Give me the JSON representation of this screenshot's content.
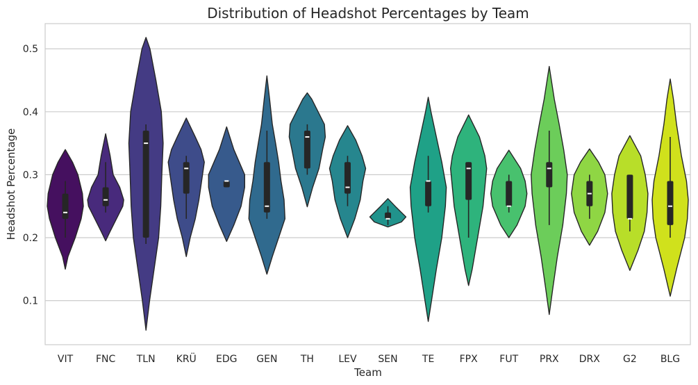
{
  "chart_data": {
    "type": "violin",
    "title": "Distribution of Headshot Percentages by Team",
    "xlabel": "Team",
    "ylabel": "Headshot Percentage",
    "ylim": [
      0.03,
      0.54
    ],
    "yticks": [
      0.1,
      0.2,
      0.3,
      0.4,
      0.5
    ],
    "grid": "horizontal",
    "legend": "none",
    "colormap": "viridis",
    "categories": [
      "VIT",
      "FNC",
      "TLN",
      "KRÜ",
      "EDG",
      "GEN",
      "TH",
      "LEV",
      "SEN",
      "TE",
      "FPX",
      "FUT",
      "PRX",
      "DRX",
      "G2",
      "BLG"
    ],
    "colors": [
      "#45105f",
      "#482a7c",
      "#443b84",
      "#3e4c8a",
      "#375a8c",
      "#306a8e",
      "#2b788e",
      "#26868e",
      "#21938c",
      "#1fa187",
      "#2eb37c",
      "#48c16e",
      "#6ccd5a",
      "#8fd644",
      "#b8de29",
      "#d0e11c"
    ],
    "series": [
      {
        "min": 0.2,
        "q1": 0.23,
        "median": 0.24,
        "q3": 0.27,
        "max": 0.29,
        "profile": [
          [
            0.15,
            0.0
          ],
          [
            0.17,
            0.15
          ],
          [
            0.2,
            0.55
          ],
          [
            0.23,
            0.88
          ],
          [
            0.25,
            1.0
          ],
          [
            0.27,
            0.95
          ],
          [
            0.3,
            0.7
          ],
          [
            0.32,
            0.4
          ],
          [
            0.34,
            0.0
          ]
        ]
      },
      {
        "min": 0.24,
        "q1": 0.25,
        "median": 0.26,
        "q3": 0.28,
        "max": 0.32,
        "profile": [
          [
            0.195,
            0.0
          ],
          [
            0.21,
            0.25
          ],
          [
            0.23,
            0.6
          ],
          [
            0.25,
            0.95
          ],
          [
            0.26,
            1.0
          ],
          [
            0.28,
            0.78
          ],
          [
            0.3,
            0.42
          ],
          [
            0.33,
            0.25
          ],
          [
            0.365,
            0.0
          ]
        ]
      },
      {
        "min": 0.19,
        "q1": 0.2,
        "median": 0.35,
        "q3": 0.37,
        "max": 0.38,
        "profile": [
          [
            0.053,
            0.0
          ],
          [
            0.1,
            0.2
          ],
          [
            0.15,
            0.45
          ],
          [
            0.2,
            0.7
          ],
          [
            0.25,
            0.82
          ],
          [
            0.3,
            0.88
          ],
          [
            0.35,
            0.95
          ],
          [
            0.4,
            0.85
          ],
          [
            0.45,
            0.55
          ],
          [
            0.5,
            0.22
          ],
          [
            0.518,
            0.0
          ]
        ]
      },
      {
        "min": 0.23,
        "q1": 0.27,
        "median": 0.31,
        "q3": 0.32,
        "max": 0.33,
        "profile": [
          [
            0.17,
            0.0
          ],
          [
            0.2,
            0.22
          ],
          [
            0.23,
            0.5
          ],
          [
            0.26,
            0.7
          ],
          [
            0.29,
            0.85
          ],
          [
            0.32,
            1.0
          ],
          [
            0.34,
            0.82
          ],
          [
            0.36,
            0.5
          ],
          [
            0.39,
            0.0
          ]
        ]
      },
      {
        "min": 0.28,
        "q1": 0.28,
        "median": 0.29,
        "q3": 0.29,
        "max": 0.29,
        "profile": [
          [
            0.194,
            0.0
          ],
          [
            0.22,
            0.4
          ],
          [
            0.25,
            0.8
          ],
          [
            0.28,
            1.0
          ],
          [
            0.3,
            1.0
          ],
          [
            0.32,
            0.7
          ],
          [
            0.34,
            0.4
          ],
          [
            0.376,
            0.0
          ]
        ]
      },
      {
        "min": 0.23,
        "q1": 0.24,
        "median": 0.25,
        "q3": 0.32,
        "max": 0.37,
        "profile": [
          [
            0.142,
            0.0
          ],
          [
            0.17,
            0.3
          ],
          [
            0.2,
            0.65
          ],
          [
            0.23,
            1.0
          ],
          [
            0.26,
            0.95
          ],
          [
            0.29,
            0.78
          ],
          [
            0.32,
            0.65
          ],
          [
            0.35,
            0.48
          ],
          [
            0.38,
            0.3
          ],
          [
            0.42,
            0.15
          ],
          [
            0.457,
            0.0
          ]
        ]
      },
      {
        "min": 0.3,
        "q1": 0.31,
        "median": 0.36,
        "q3": 0.37,
        "max": 0.38,
        "profile": [
          [
            0.249,
            0.0
          ],
          [
            0.28,
            0.3
          ],
          [
            0.31,
            0.65
          ],
          [
            0.34,
            0.85
          ],
          [
            0.36,
            1.0
          ],
          [
            0.38,
            0.95
          ],
          [
            0.4,
            0.6
          ],
          [
            0.42,
            0.25
          ],
          [
            0.43,
            0.0
          ]
        ]
      },
      {
        "min": 0.25,
        "q1": 0.27,
        "median": 0.28,
        "q3": 0.32,
        "max": 0.33,
        "profile": [
          [
            0.2,
            0.0
          ],
          [
            0.23,
            0.4
          ],
          [
            0.26,
            0.7
          ],
          [
            0.29,
            0.85
          ],
          [
            0.31,
            1.0
          ],
          [
            0.33,
            0.8
          ],
          [
            0.355,
            0.45
          ],
          [
            0.378,
            0.0
          ]
        ]
      },
      {
        "min": 0.22,
        "q1": 0.23,
        "median": 0.23,
        "q3": 0.24,
        "max": 0.25,
        "profile": [
          [
            0.217,
            0.0
          ],
          [
            0.225,
            0.75
          ],
          [
            0.233,
            1.0
          ],
          [
            0.24,
            0.75
          ],
          [
            0.25,
            0.4
          ],
          [
            0.262,
            0.0
          ]
        ]
      },
      {
        "min": 0.24,
        "q1": 0.25,
        "median": 0.29,
        "q3": 0.29,
        "max": 0.33,
        "profile": [
          [
            0.067,
            0.0
          ],
          [
            0.1,
            0.18
          ],
          [
            0.15,
            0.45
          ],
          [
            0.2,
            0.75
          ],
          [
            0.25,
            0.95
          ],
          [
            0.28,
            1.0
          ],
          [
            0.32,
            0.75
          ],
          [
            0.36,
            0.45
          ],
          [
            0.4,
            0.15
          ],
          [
            0.423,
            0.0
          ]
        ]
      },
      {
        "min": 0.2,
        "q1": 0.26,
        "median": 0.31,
        "q3": 0.32,
        "max": 0.32,
        "profile": [
          [
            0.124,
            0.0
          ],
          [
            0.15,
            0.2
          ],
          [
            0.2,
            0.5
          ],
          [
            0.25,
            0.8
          ],
          [
            0.28,
            0.9
          ],
          [
            0.31,
            1.0
          ],
          [
            0.33,
            0.9
          ],
          [
            0.36,
            0.6
          ],
          [
            0.395,
            0.0
          ]
        ]
      },
      {
        "min": 0.24,
        "q1": 0.25,
        "median": 0.25,
        "q3": 0.29,
        "max": 0.3,
        "profile": [
          [
            0.2,
            0.0
          ],
          [
            0.22,
            0.45
          ],
          [
            0.25,
            0.9
          ],
          [
            0.27,
            1.0
          ],
          [
            0.29,
            0.9
          ],
          [
            0.31,
            0.65
          ],
          [
            0.339,
            0.0
          ]
        ]
      },
      {
        "min": 0.22,
        "q1": 0.28,
        "median": 0.31,
        "q3": 0.32,
        "max": 0.37,
        "profile": [
          [
            0.078,
            0.0
          ],
          [
            0.12,
            0.2
          ],
          [
            0.17,
            0.45
          ],
          [
            0.22,
            0.75
          ],
          [
            0.27,
            0.95
          ],
          [
            0.3,
            1.0
          ],
          [
            0.34,
            0.8
          ],
          [
            0.38,
            0.55
          ],
          [
            0.42,
            0.28
          ],
          [
            0.472,
            0.0
          ]
        ]
      },
      {
        "min": 0.23,
        "q1": 0.25,
        "median": 0.27,
        "q3": 0.29,
        "max": 0.3,
        "profile": [
          [
            0.188,
            0.0
          ],
          [
            0.21,
            0.45
          ],
          [
            0.24,
            0.85
          ],
          [
            0.27,
            1.0
          ],
          [
            0.3,
            0.85
          ],
          [
            0.32,
            0.5
          ],
          [
            0.341,
            0.0
          ]
        ]
      },
      {
        "min": 0.21,
        "q1": 0.23,
        "median": 0.23,
        "q3": 0.3,
        "max": 0.3,
        "profile": [
          [
            0.148,
            0.0
          ],
          [
            0.18,
            0.45
          ],
          [
            0.21,
            0.8
          ],
          [
            0.24,
            0.95
          ],
          [
            0.27,
            1.0
          ],
          [
            0.3,
            0.85
          ],
          [
            0.33,
            0.6
          ],
          [
            0.362,
            0.0
          ]
        ]
      },
      {
        "min": 0.2,
        "q1": 0.22,
        "median": 0.25,
        "q3": 0.29,
        "max": 0.36,
        "profile": [
          [
            0.107,
            0.0
          ],
          [
            0.15,
            0.35
          ],
          [
            0.2,
            0.8
          ],
          [
            0.23,
            0.95
          ],
          [
            0.26,
            1.0
          ],
          [
            0.29,
            0.9
          ],
          [
            0.33,
            0.62
          ],
          [
            0.38,
            0.35
          ],
          [
            0.42,
            0.18
          ],
          [
            0.452,
            0.0
          ]
        ]
      }
    ]
  }
}
